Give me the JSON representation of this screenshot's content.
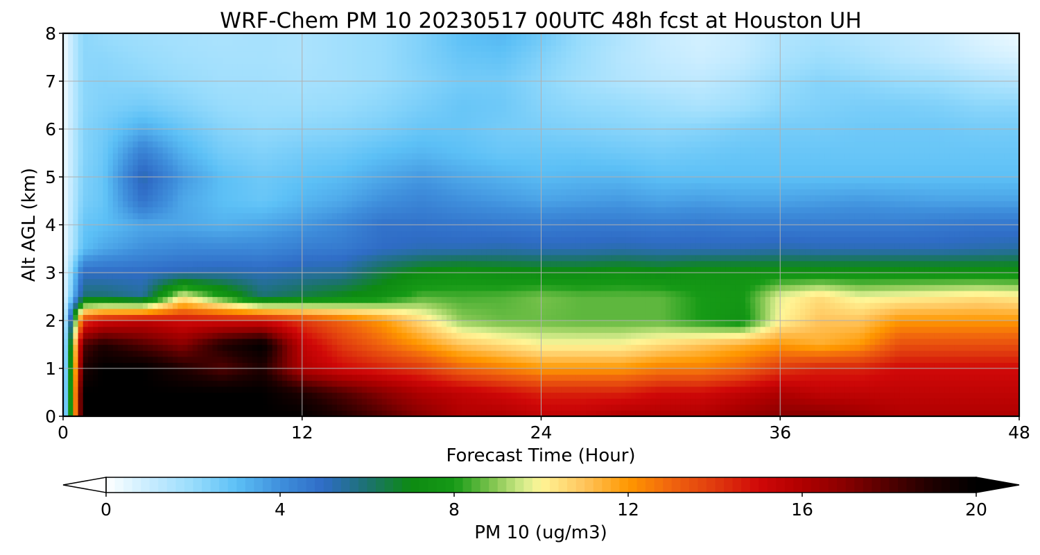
{
  "chart_data": {
    "type": "heatmap",
    "title": "WRF-Chem PM 10  20230517 00UTC 48h fcst at Houston UH",
    "xlabel": "Forecast Time (Hour)",
    "ylabel": "Alt AGL (km)",
    "xlim": [
      0,
      48
    ],
    "ylim": [
      0,
      8
    ],
    "xticks": [
      0,
      12,
      24,
      36,
      48
    ],
    "yticks": [
      0,
      1,
      2,
      3,
      4,
      5,
      6,
      7,
      8
    ],
    "grid": true,
    "x": [
      0,
      1,
      2,
      4,
      6,
      8,
      10,
      12,
      14,
      16,
      18,
      20,
      22,
      24,
      26,
      28,
      30,
      32,
      34,
      36,
      38,
      40,
      42,
      44,
      46,
      48
    ],
    "y": [
      0,
      0.5,
      1,
      1.5,
      2,
      2.5,
      3,
      3.5,
      4,
      4.5,
      5,
      5.5,
      6,
      6.5,
      7,
      7.5,
      8
    ],
    "z": [
      [
        0.2,
        20,
        20,
        20,
        20,
        20,
        20,
        20,
        19,
        18,
        17,
        16,
        16,
        15.5,
        15.5,
        16,
        16,
        16,
        16.5,
        17,
        17,
        16.5,
        16,
        16,
        16,
        16
      ],
      [
        0.2,
        20,
        20,
        20,
        20,
        20,
        20,
        19,
        18,
        17,
        16,
        15.5,
        15,
        14.5,
        14.5,
        14.5,
        15,
        15,
        15.5,
        16,
        15.5,
        15.5,
        15.5,
        15.5,
        15.5,
        15.5
      ],
      [
        0.2,
        19,
        20,
        20,
        19,
        18,
        19,
        16,
        15,
        14.5,
        14,
        13,
        12.5,
        12,
        12,
        12,
        12.5,
        12.5,
        13,
        14,
        14.5,
        14.5,
        15,
        15,
        15,
        15
      ],
      [
        0.2,
        18,
        19,
        18,
        17,
        19,
        20,
        15.5,
        14,
        13,
        12,
        11,
        10.5,
        10,
        10,
        10,
        10.5,
        11,
        11.5,
        12,
        11.5,
        12,
        13.5,
        13.5,
        13.5,
        13.5
      ],
      [
        0.2,
        14,
        15,
        15.5,
        15,
        15,
        15,
        14,
        13,
        12,
        10.5,
        9,
        8.7,
        8.7,
        8.6,
        8.6,
        8.6,
        8,
        7.5,
        10,
        11,
        11,
        12,
        12,
        12,
        12
      ],
      [
        0.2,
        6,
        6,
        5.5,
        10,
        8,
        6,
        6.5,
        7,
        7.5,
        8.5,
        8.4,
        8.5,
        8.8,
        8.6,
        8.6,
        8.6,
        8,
        7.8,
        9.8,
        10.5,
        9.8,
        10,
        10.2,
        10.4,
        10.2
      ],
      [
        0.2,
        5,
        5,
        5,
        5.2,
        5.3,
        5.2,
        5.4,
        5.5,
        6.5,
        7.2,
        7.5,
        7.3,
        7.2,
        7.2,
        7.4,
        7.2,
        7.5,
        7.5,
        7.5,
        7.5,
        7.5,
        7.5,
        7.5,
        7.5,
        7.5
      ],
      [
        0.2,
        3,
        3.5,
        4,
        4.2,
        4.2,
        4.2,
        4.5,
        4.6,
        5,
        5.2,
        5.2,
        5.3,
        5.2,
        5.2,
        5.3,
        5.2,
        5.2,
        5.2,
        5.3,
        5.2,
        5.2,
        5.2,
        5.2,
        5.3,
        5.4
      ],
      [
        0.2,
        2.8,
        3,
        3.5,
        3.5,
        3.3,
        3.5,
        3.8,
        4.2,
        4.8,
        4.8,
        4.7,
        4.6,
        4.5,
        4.6,
        4.6,
        4.5,
        4.6,
        4.5,
        4.5,
        4.5,
        4.5,
        4.5,
        4.6,
        4.7,
        4.7
      ],
      [
        0.2,
        2.5,
        2.8,
        4.8,
        3.5,
        3,
        2.8,
        3.2,
        3.5,
        4,
        4.3,
        4,
        3.8,
        3.6,
        3.7,
        3.8,
        3.6,
        3.7,
        3.6,
        3.6,
        3.7,
        3.8,
        3.7,
        3.6,
        3.6,
        3.6
      ],
      [
        0.2,
        2.4,
        2.8,
        5.3,
        3.8,
        3,
        2.7,
        2.9,
        3.1,
        3.5,
        3.8,
        3.5,
        3.3,
        3.1,
        3.2,
        3.2,
        3,
        3,
        3,
        3,
        3,
        3,
        3,
        3,
        3,
        3
      ],
      [
        0.2,
        2.3,
        2.7,
        4.5,
        3.3,
        2.6,
        2.4,
        2.6,
        2.7,
        3,
        3.2,
        3,
        2.8,
        2.8,
        2.8,
        2.7,
        2.6,
        2.7,
        2.8,
        2.8,
        2.8,
        2.8,
        2.8,
        2.8,
        2.8,
        2.8
      ],
      [
        0.2,
        2.3,
        2.6,
        3.4,
        2.8,
        2.3,
        2.1,
        2.2,
        2.3,
        2.5,
        2.8,
        2.8,
        2.6,
        2.5,
        2.4,
        2.3,
        2.2,
        2.3,
        2.5,
        2.6,
        2.6,
        2.7,
        2.7,
        2.7,
        2.6,
        2.6
      ],
      [
        0.2,
        2.2,
        2.4,
        2.6,
        2.3,
        2,
        1.9,
        1.9,
        2,
        2.2,
        2.5,
        2.8,
        2.7,
        2.3,
        2.1,
        2,
        1.8,
        1.6,
        1.8,
        2.2,
        2.4,
        2.5,
        2.5,
        2.4,
        2.2,
        2.2
      ],
      [
        0.2,
        2.2,
        2.3,
        2.2,
        2,
        1.8,
        1.8,
        1.7,
        1.8,
        2,
        2.3,
        2.6,
        2.6,
        2.2,
        1.8,
        1.5,
        1.3,
        1.2,
        1.5,
        2,
        2.3,
        2.2,
        2,
        1.9,
        1.6,
        1.4
      ],
      [
        0.2,
        2.2,
        2.2,
        2,
        1.8,
        1.7,
        1.7,
        1.6,
        1.8,
        2,
        2.4,
        2.8,
        2.9,
        2.4,
        1.9,
        1.4,
        1.1,
        0.9,
        1.1,
        1.6,
        1.9,
        1.7,
        1.4,
        1.2,
        0.9,
        0.7
      ],
      [
        0.2,
        2.2,
        2,
        1.8,
        1.7,
        1.6,
        1.7,
        1.6,
        1.8,
        2,
        2.4,
        3,
        3.2,
        2.7,
        2,
        1.5,
        1,
        0.8,
        1,
        1.5,
        1.6,
        1.4,
        1.2,
        1,
        0.6,
        0.3
      ]
    ],
    "colorbar": {
      "label": "PM 10  (ug/m3)",
      "min": 0,
      "max": 20,
      "ticks": [
        0,
        4,
        8,
        12,
        16,
        20
      ],
      "extend": "both",
      "colors": [
        [
          0,
          "#ffffff"
        ],
        [
          0.5,
          "#e3f6ff"
        ],
        [
          1,
          "#c8ecff"
        ],
        [
          2,
          "#98dcfc"
        ],
        [
          3,
          "#5cc0f6"
        ],
        [
          4,
          "#3f8fdc"
        ],
        [
          5,
          "#2f6cc6"
        ],
        [
          6,
          "#1c7270"
        ],
        [
          7,
          "#0d8a12"
        ],
        [
          8,
          "#169a16"
        ],
        [
          9,
          "#8ecb58"
        ],
        [
          9.6,
          "#d6ec8c"
        ],
        [
          10,
          "#fff596"
        ],
        [
          11,
          "#ffc45c"
        ],
        [
          12,
          "#ff9800"
        ],
        [
          13,
          "#f0640e"
        ],
        [
          14,
          "#e03a0e"
        ],
        [
          15,
          "#d00808"
        ],
        [
          16,
          "#b00000"
        ],
        [
          17,
          "#880000"
        ],
        [
          18,
          "#500000"
        ],
        [
          19,
          "#1e0000"
        ],
        [
          20,
          "#000000"
        ]
      ]
    }
  }
}
